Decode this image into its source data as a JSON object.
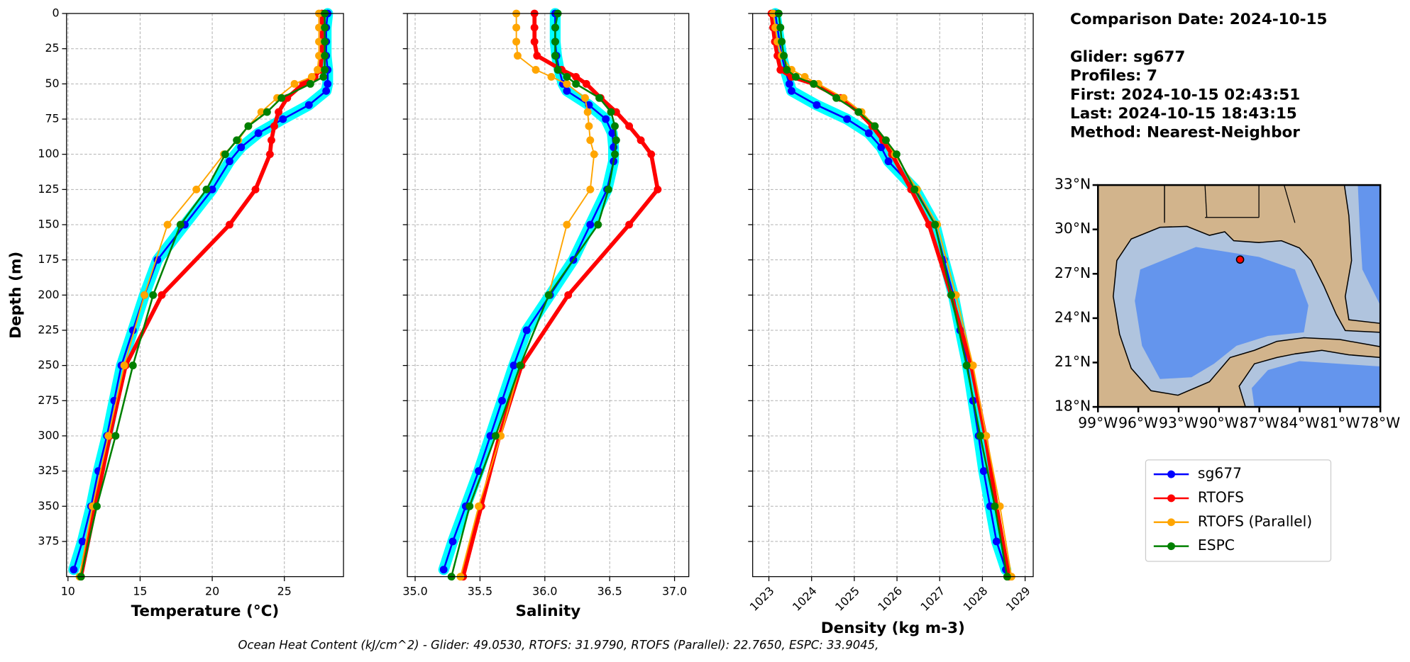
{
  "chart_data": [
    {
      "type": "profile",
      "xlabel": "Temperature (°C)",
      "ylabel": "Depth (m)",
      "xlim": [
        9.9,
        29.1
      ],
      "xticks": [
        10,
        15,
        20,
        25
      ],
      "ylim": [
        0,
        400
      ],
      "invert_y": true,
      "yticks": [
        0,
        25,
        50,
        75,
        100,
        125,
        150,
        175,
        200,
        225,
        250,
        275,
        300,
        325,
        350,
        375
      ],
      "grid": true,
      "series": [
        {
          "name": "sg677",
          "color": "#0000ff",
          "profile_color": "#00ffff",
          "linewidth": 2,
          "y": [
            0,
            10,
            20,
            30,
            40,
            50,
            55,
            65,
            75,
            85,
            95,
            105,
            125,
            150,
            175,
            200,
            225,
            250,
            275,
            300,
            325,
            350,
            375,
            395
          ],
          "x": [
            28.0,
            27.9,
            27.9,
            27.9,
            28.0,
            28.0,
            27.9,
            26.7,
            24.9,
            23.2,
            22.0,
            21.2,
            20.0,
            18.1,
            16.2,
            15.3,
            14.5,
            13.7,
            13.2,
            12.7,
            12.1,
            11.6,
            11.0,
            10.4
          ]
        },
        {
          "name": "RTOFS",
          "color": "#ff0000",
          "linewidth": 4.5,
          "y": [
            0,
            10,
            20,
            30,
            40,
            45,
            50,
            60,
            70,
            80,
            90,
            100,
            125,
            150,
            200,
            250,
            300,
            350,
            400
          ],
          "x": [
            27.6,
            27.6,
            27.6,
            27.6,
            27.5,
            27.1,
            26.3,
            25.2,
            24.6,
            24.3,
            24.1,
            24.0,
            23.0,
            21.2,
            16.5,
            14.0,
            12.9,
            11.9,
            10.9
          ]
        },
        {
          "name": "RTOFS (Parallel)",
          "color": "#ffa500",
          "linewidth": 1.5,
          "y": [
            0,
            10,
            20,
            30,
            40,
            45,
            50,
            60,
            70,
            80,
            90,
            100,
            125,
            150,
            200,
            250,
            300,
            350,
            400
          ],
          "x": [
            27.4,
            27.4,
            27.4,
            27.4,
            27.3,
            26.9,
            25.7,
            24.5,
            23.4,
            22.5,
            21.8,
            20.8,
            18.9,
            16.9,
            15.3,
            13.9,
            12.8,
            11.7,
            10.8
          ]
        },
        {
          "name": "ESPC",
          "color": "#008000",
          "linewidth": 2,
          "y": [
            0,
            10,
            20,
            30,
            40,
            45,
            50,
            60,
            70,
            80,
            90,
            100,
            125,
            150,
            200,
            250,
            300,
            350,
            400
          ],
          "x": [
            27.8,
            27.8,
            27.8,
            27.8,
            27.8,
            27.7,
            26.8,
            24.8,
            23.8,
            22.5,
            21.7,
            20.9,
            19.6,
            17.8,
            15.9,
            14.5,
            13.3,
            12.0,
            10.9
          ]
        }
      ]
    },
    {
      "type": "profile",
      "xlabel": "Salinity",
      "xlim": [
        34.94,
        37.11
      ],
      "xticks": [
        {
          "value": 35,
          "label": "35.0"
        },
        35.5,
        {
          "value": 36,
          "label": "36.0"
        },
        36.5,
        {
          "value": 37,
          "label": "37.0"
        }
      ],
      "ylim": [
        0,
        400
      ],
      "invert_y": true,
      "yticks": [
        0,
        25,
        50,
        75,
        100,
        125,
        150,
        175,
        200,
        225,
        250,
        275,
        300,
        325,
        350,
        375
      ],
      "grid": true,
      "series": [
        {
          "name": "sg677",
          "color": "#0000ff",
          "profile_color": "#00ffff",
          "linewidth": 2,
          "y": [
            0,
            10,
            20,
            30,
            40,
            50,
            55,
            65,
            75,
            85,
            95,
            105,
            125,
            150,
            175,
            200,
            225,
            250,
            275,
            300,
            325,
            350,
            375,
            395
          ],
          "x": [
            36.08,
            36.08,
            36.08,
            36.09,
            36.11,
            36.14,
            36.17,
            36.34,
            36.47,
            36.52,
            36.53,
            36.53,
            36.48,
            36.35,
            36.22,
            36.04,
            35.86,
            35.76,
            35.67,
            35.58,
            35.49,
            35.39,
            35.29,
            35.22
          ]
        },
        {
          "name": "RTOFS",
          "color": "#ff0000",
          "linewidth": 4.5,
          "y": [
            0,
            10,
            20,
            30,
            40,
            45,
            50,
            60,
            70,
            80,
            90,
            100,
            125,
            150,
            200,
            250,
            300,
            350,
            400
          ],
          "x": [
            35.92,
            35.92,
            35.92,
            35.94,
            36.13,
            36.24,
            36.32,
            36.43,
            36.55,
            36.65,
            36.74,
            36.82,
            36.87,
            36.65,
            36.18,
            35.82,
            35.65,
            35.51,
            35.37
          ]
        },
        {
          "name": "RTOFS (Parallel)",
          "color": "#ffa500",
          "linewidth": 1.5,
          "y": [
            0,
            10,
            20,
            30,
            40,
            45,
            50,
            60,
            70,
            80,
            90,
            100,
            125,
            150,
            200,
            250,
            300,
            350,
            400
          ],
          "x": [
            35.78,
            35.78,
            35.78,
            35.79,
            35.93,
            36.05,
            36.17,
            36.31,
            36.33,
            36.34,
            36.35,
            36.38,
            36.35,
            36.17,
            36.03,
            35.81,
            35.66,
            35.49,
            35.35
          ]
        },
        {
          "name": "ESPC",
          "color": "#008000",
          "linewidth": 2,
          "y": [
            0,
            10,
            20,
            30,
            40,
            45,
            50,
            60,
            70,
            80,
            90,
            100,
            125,
            150,
            200,
            250,
            300,
            350,
            400
          ],
          "x": [
            36.1,
            36.08,
            36.08,
            36.08,
            36.1,
            36.17,
            36.24,
            36.42,
            36.51,
            36.54,
            36.55,
            36.54,
            36.49,
            36.41,
            36.03,
            35.81,
            35.62,
            35.42,
            35.28
          ]
        }
      ]
    },
    {
      "type": "profile",
      "xlabel": "Density (kg m-3)",
      "xlim": [
        1022.62,
        1029.19
      ],
      "xticks": [
        1023,
        1024,
        1025,
        1026,
        1027,
        1028,
        1029
      ],
      "xtick_rotation": 45,
      "ylim": [
        0,
        400
      ],
      "invert_y": true,
      "yticks": [
        0,
        25,
        50,
        75,
        100,
        125,
        150,
        175,
        200,
        225,
        250,
        275,
        300,
        325,
        350,
        375
      ],
      "grid": true,
      "series": [
        {
          "name": "sg677",
          "color": "#0000ff",
          "profile_color": "#00ffff",
          "linewidth": 2,
          "y": [
            0,
            10,
            20,
            30,
            40,
            50,
            55,
            65,
            75,
            85,
            95,
            105,
            125,
            150,
            175,
            200,
            225,
            250,
            275,
            300,
            325,
            350,
            375,
            395
          ],
          "x": [
            1023.15,
            1023.2,
            1023.25,
            1023.3,
            1023.38,
            1023.48,
            1023.53,
            1024.12,
            1024.83,
            1025.34,
            1025.63,
            1025.8,
            1026.43,
            1026.89,
            1027.1,
            1027.32,
            1027.48,
            1027.65,
            1027.78,
            1027.91,
            1028.03,
            1028.18,
            1028.33,
            1028.55
          ]
        },
        {
          "name": "RTOFS",
          "color": "#ff0000",
          "linewidth": 4.5,
          "y": [
            0,
            10,
            20,
            30,
            40,
            45,
            50,
            60,
            70,
            80,
            90,
            100,
            125,
            150,
            200,
            250,
            300,
            350,
            400
          ],
          "x": [
            1023.06,
            1023.1,
            1023.14,
            1023.2,
            1023.27,
            1023.53,
            1024.05,
            1024.68,
            1025.1,
            1025.42,
            1025.67,
            1025.88,
            1026.33,
            1026.75,
            1027.27,
            1027.74,
            1028.07,
            1028.33,
            1028.62
          ]
        },
        {
          "name": "RTOFS (Parallel)",
          "color": "#ffa500",
          "linewidth": 1.5,
          "y": [
            0,
            10,
            20,
            30,
            40,
            45,
            50,
            60,
            70,
            80,
            90,
            100,
            125,
            150,
            200,
            250,
            300,
            350,
            400
          ],
          "x": [
            1023.1,
            1023.15,
            1023.2,
            1023.3,
            1023.53,
            1023.84,
            1024.16,
            1024.75,
            1025.17,
            1025.48,
            1025.74,
            1025.95,
            1026.47,
            1026.94,
            1027.38,
            1027.78,
            1028.09,
            1028.41,
            1028.68
          ]
        },
        {
          "name": "ESPC",
          "color": "#008000",
          "linewidth": 2,
          "y": [
            0,
            10,
            20,
            30,
            40,
            45,
            50,
            60,
            70,
            80,
            90,
            100,
            125,
            150,
            200,
            250,
            300,
            350,
            400
          ],
          "x": [
            1023.23,
            1023.27,
            1023.3,
            1023.35,
            1023.42,
            1023.63,
            1024.05,
            1024.58,
            1025.1,
            1025.48,
            1025.74,
            1025.99,
            1026.41,
            1026.89,
            1027.27,
            1027.63,
            1027.95,
            1028.29,
            1028.58
          ]
        }
      ]
    },
    {
      "type": "map",
      "xlim": [
        -99,
        -78
      ],
      "ylim": [
        18,
        33
      ],
      "xticks": [
        {
          "value": -99,
          "label": "99°W"
        },
        {
          "value": -96,
          "label": "96°W"
        },
        {
          "value": -93,
          "label": "93°W"
        },
        {
          "value": -90,
          "label": "90°W"
        },
        {
          "value": -87,
          "label": "87°W"
        },
        {
          "value": -84,
          "label": "84°W"
        },
        {
          "value": -81,
          "label": "81°W"
        },
        {
          "value": -78,
          "label": "78°W"
        }
      ],
      "yticks": [
        {
          "value": 18,
          "label": "18°N"
        },
        {
          "value": 21,
          "label": "21°N"
        },
        {
          "value": 24,
          "label": "24°N"
        },
        {
          "value": 27,
          "label": "27°N"
        },
        {
          "value": 30,
          "label": "30°N"
        },
        {
          "value": 33,
          "label": "33°N"
        }
      ],
      "point": {
        "lon": -88.43,
        "lat": 27.96,
        "color": "#ff0000"
      }
    }
  ],
  "info": [
    "Comparison Date: 2024-10-15",
    "Glider: sg677",
    "Profiles: 7",
    "First: 2024-10-15 02:43:51",
    "Last: 2024-10-15 18:43:15",
    "Method: Nearest-Neighbor"
  ],
  "footer": "Ocean Heat Content (kJ/cm^2) - Glider: 49.0530,  RTOFS: 31.9790,  RTOFS (Parallel): 22.7650,  ESPC: 33.9045,"
}
